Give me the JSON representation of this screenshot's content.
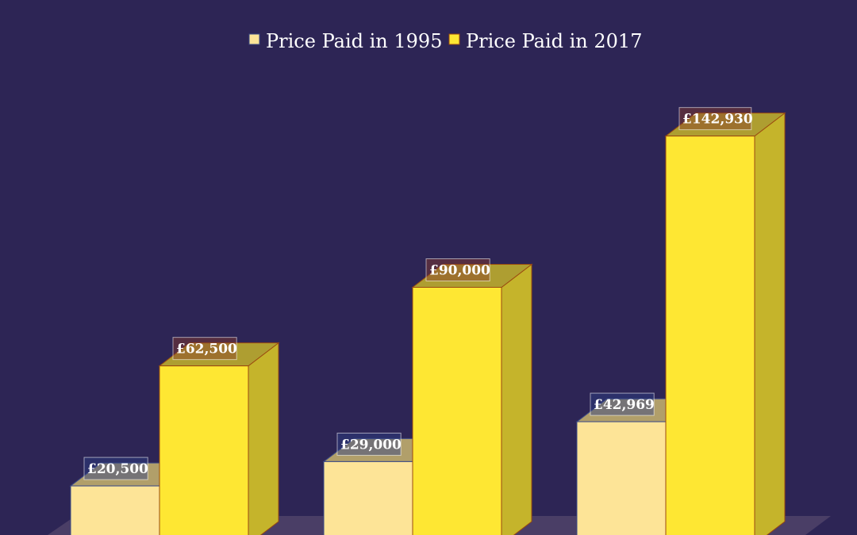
{
  "chart_data": {
    "type": "bar",
    "title": "",
    "xlabel": "",
    "ylabel": "",
    "categories": [
      "",
      "",
      ""
    ],
    "series": [
      {
        "name": "Price Paid in 1995",
        "values": [
          20500,
          29000,
          42969
        ],
        "labels": [
          "£20,500",
          "£29,000",
          "£42,969"
        ],
        "color": "#fde497",
        "side": "#c9b56f",
        "stroke": "#3c4a86",
        "labelbg": "#2d3f86"
      },
      {
        "name": "Price Paid in 2017",
        "values": [
          62500,
          90000,
          142930
        ],
        "labels": [
          "£62,500",
          "£90,000",
          "£142,930"
        ],
        "color": "#fee733",
        "side": "#c5b42b",
        "stroke": "#9a4a10",
        "labelbg": "#8a3a2a"
      }
    ],
    "ylim": [
      0,
      150000
    ],
    "grid": false,
    "legend": "top-center",
    "background": "#2d2555",
    "floor": "#4a3e66"
  }
}
